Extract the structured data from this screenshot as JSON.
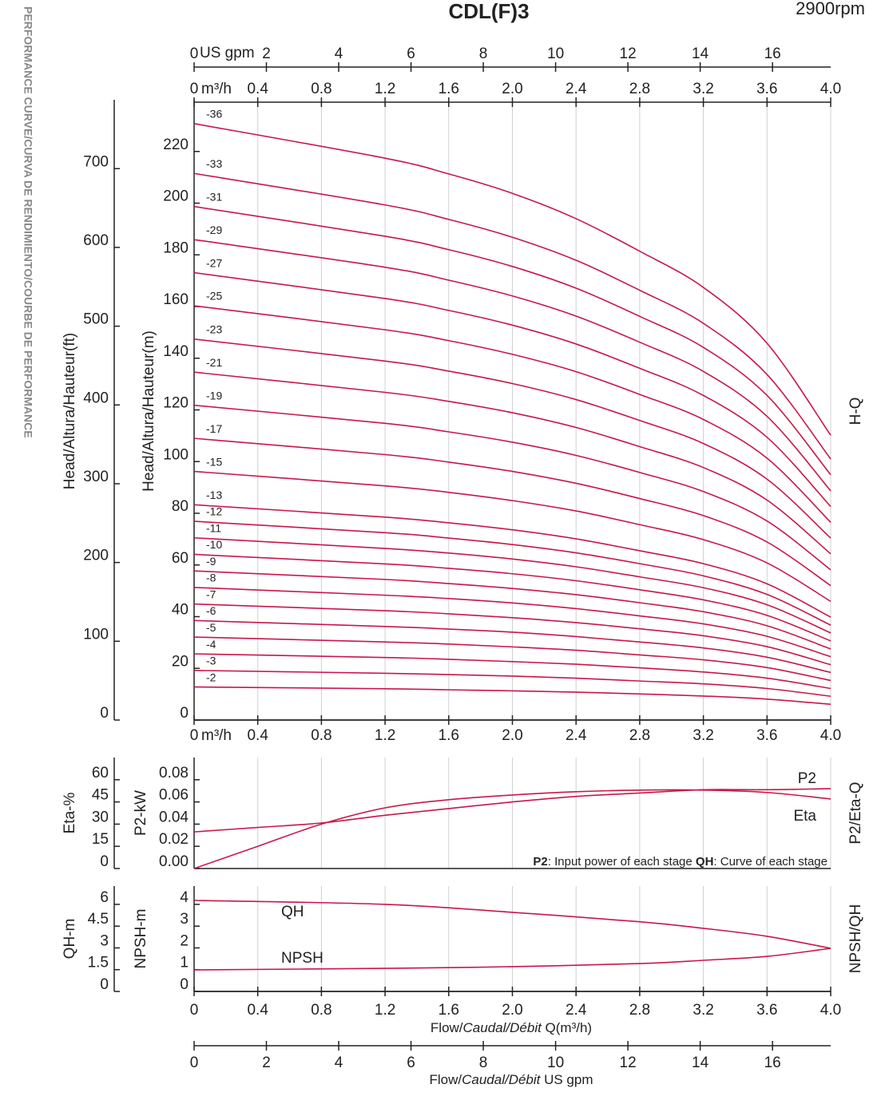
{
  "title": "CDL(F)3",
  "speed": "2900rpm",
  "side_title": "PERFORMANCE CURVE/CURVA DE RENDIMIENTO/COURBE DE PERFORMANCE",
  "chart_data": [
    {
      "type": "line",
      "side_label": "H-Q",
      "y_label": "Head/Altura/Hauteur(m)",
      "y2_label": "Head/Altura/Hauteur(ft)",
      "x_unit": "m³/h",
      "xlim": [
        0,
        4
      ],
      "xticks": [
        0,
        0.4,
        0.8,
        1.2,
        1.6,
        {
          "value": 2,
          "label": "2.0"
        },
        2.4,
        2.8,
        3.2,
        3.6,
        {
          "value": 4,
          "label": "4.0"
        }
      ],
      "x2_unit": "US gpm",
      "x2lim": [
        0,
        17.61
      ],
      "x2ticks": [
        0,
        2,
        4,
        6,
        8,
        10,
        12,
        14,
        16
      ],
      "ylim": [
        0,
        240
      ],
      "yticks": [
        0,
        20,
        40,
        60,
        80,
        100,
        120,
        140,
        160,
        180,
        200,
        220
      ],
      "y2lim": [
        0,
        787.4
      ],
      "y2ticks": [
        0,
        100,
        200,
        300,
        400,
        500,
        600,
        700
      ],
      "grid": true,
      "color": "#c8174a",
      "x": [
        0,
        1.2,
        1.6,
        2,
        2.4,
        2.8,
        3.2,
        3.6,
        4
      ],
      "series": [
        {
          "name": "-36",
          "values": [
            230.8,
            217.4,
            211.3,
            203.8,
            194.0,
            181.4,
            167.4,
            145.8,
            110.2
          ]
        },
        {
          "name": "-33",
          "values": [
            211.5,
            199.3,
            193.7,
            186.8,
            177.9,
            166.3,
            153.5,
            133.7,
            101.0
          ]
        },
        {
          "name": "-31",
          "values": [
            198.7,
            187.2,
            182.0,
            175.5,
            167.1,
            156.2,
            144.2,
            125.6,
            94.9
          ]
        },
        {
          "name": "-29",
          "values": [
            185.9,
            175.2,
            170.2,
            164.1,
            156.3,
            146.2,
            134.9,
            117.5,
            88.7
          ]
        },
        {
          "name": "-27",
          "values": [
            173.1,
            163.1,
            158.5,
            152.8,
            145.5,
            136.1,
            125.6,
            109.4,
            82.6
          ]
        },
        {
          "name": "-25",
          "values": [
            160.3,
            151.0,
            146.8,
            141.5,
            134.8,
            126.0,
            116.3,
            101.3,
            76.5
          ]
        },
        {
          "name": "-23",
          "values": [
            147.4,
            138.9,
            135.0,
            130.2,
            124.0,
            115.9,
            107.0,
            93.2,
            70.4
          ]
        },
        {
          "name": "-21",
          "values": [
            134.6,
            126.8,
            123.3,
            118.9,
            113.2,
            105.8,
            97.7,
            85.1,
            64.3
          ]
        },
        {
          "name": "-19",
          "values": [
            121.8,
            114.8,
            111.5,
            107.5,
            102.4,
            95.8,
            88.4,
            77.0,
            58.1
          ]
        },
        {
          "name": "-17",
          "values": [
            109.0,
            102.7,
            99.8,
            96.2,
            91.6,
            85.7,
            79.1,
            68.9,
            52.0
          ]
        },
        {
          "name": "-15",
          "values": [
            96.2,
            90.6,
            88.1,
            84.9,
            80.9,
            75.6,
            69.8,
            60.8,
            45.9
          ]
        },
        {
          "name": "-13",
          "values": [
            83.3,
            78.5,
            76.3,
            73.6,
            70.1,
            65.5,
            60.5,
            52.7,
            39.8
          ]
        },
        {
          "name": "-12",
          "values": [
            76.9,
            72.5,
            70.4,
            67.9,
            64.7,
            60.5,
            55.8,
            48.6,
            36.7
          ]
        },
        {
          "name": "-11",
          "values": [
            70.5,
            66.4,
            64.6,
            62.3,
            59.3,
            55.4,
            51.2,
            44.6,
            33.7
          ]
        },
        {
          "name": "-10",
          "values": [
            64.1,
            60.4,
            58.7,
            56.6,
            53.9,
            50.4,
            46.5,
            40.5,
            30.6
          ]
        },
        {
          "name": "-9",
          "values": [
            57.7,
            54.4,
            52.8,
            50.9,
            48.5,
            45.4,
            41.9,
            36.5,
            27.5
          ]
        },
        {
          "name": "-8",
          "values": [
            51.3,
            48.3,
            47.0,
            45.3,
            43.1,
            40.3,
            37.2,
            32.4,
            24.5
          ]
        },
        {
          "name": "-7",
          "values": [
            44.9,
            42.3,
            41.1,
            39.6,
            37.7,
            35.3,
            32.6,
            28.4,
            21.4
          ]
        },
        {
          "name": "-6",
          "values": [
            38.5,
            36.2,
            35.2,
            34.0,
            32.3,
            30.2,
            27.9,
            24.3,
            18.4
          ]
        },
        {
          "name": "-5",
          "values": [
            32.1,
            30.2,
            29.4,
            28.3,
            27.0,
            25.2,
            23.3,
            20.3,
            15.3
          ]
        },
        {
          "name": "-4",
          "values": [
            25.6,
            24.2,
            23.5,
            22.6,
            21.6,
            20.2,
            18.6,
            16.2,
            12.2
          ]
        },
        {
          "name": "-3",
          "values": [
            19.2,
            18.1,
            17.6,
            17.0,
            16.2,
            15.1,
            14.0,
            12.2,
            9.2
          ]
        },
        {
          "name": "-2",
          "values": [
            12.8,
            12.1,
            11.7,
            11.3,
            10.8,
            10.1,
            9.3,
            8.1,
            6.1
          ]
        }
      ]
    },
    {
      "type": "line",
      "side_label": "P2/Eta-Q",
      "y_label": "P2-kW",
      "y2_label": "Eta-%",
      "xlim": [
        0,
        4
      ],
      "xticks": [
        0,
        0.4,
        0.8,
        1.2,
        1.6,
        2,
        2.4,
        2.8,
        3.2,
        3.6,
        4
      ],
      "grid": true,
      "ylim": [
        0,
        0.1
      ],
      "yticks": [
        {
          "value": 0,
          "label": "0.00"
        },
        0.02,
        0.04,
        0.06,
        0.08
      ],
      "y2lim": [
        0,
        75
      ],
      "y2ticks": [
        0,
        15,
        30,
        45,
        60
      ],
      "note": [
        "P2",
        ": Input power of each stage ",
        "QH",
        ": Curve of each stage"
      ],
      "x": [
        0,
        0.4,
        0.8,
        1.2,
        1.6,
        2,
        2.4,
        2.8,
        3.2,
        3.6,
        4
      ],
      "series": [
        {
          "name": "P2",
          "color": "#c8174a",
          "values": [
            0.033,
            0.037,
            0.041,
            0.048,
            0.054,
            0.06,
            0.065,
            0.068,
            0.071,
            0.071,
            0.072
          ]
        },
        {
          "name": "Eta",
          "color": "#c8174a",
          "axis": "y2",
          "values": [
            0,
            15,
            30,
            41,
            46.5,
            49.7,
            51.9,
            53,
            53,
            51.4,
            47
          ]
        }
      ]
    },
    {
      "type": "line",
      "side_label": "NPSH/QH",
      "y_label": "NPSH-m",
      "y2_label": "QH-m",
      "xlim": [
        0,
        4
      ],
      "xticks": [
        0,
        0.4,
        0.8,
        1.2,
        1.6,
        {
          "value": 2,
          "label": "2.0"
        },
        2.4,
        2.8,
        3.2,
        3.6,
        {
          "value": 4,
          "label": "4.0"
        }
      ],
      "grid": true,
      "x_label": [
        "Flow/",
        "Caudal/Débit",
        " Q(m³/h)"
      ],
      "x2lim": [
        0,
        17.61
      ],
      "x2ticks": [
        0,
        2,
        4,
        6,
        8,
        10,
        12,
        14,
        16
      ],
      "x2_label": [
        "Flow/",
        "Caudal/Débit",
        "  US gpm"
      ],
      "ylim": [
        0,
        4.84
      ],
      "yticks": [
        0,
        1,
        2,
        3,
        4
      ],
      "y2lim": [
        0,
        7.26
      ],
      "y2ticks": [
        0,
        1.5,
        3,
        4.5,
        6
      ],
      "x": [
        0,
        1.2,
        2,
        2.8,
        3.2,
        3.6,
        4
      ],
      "series": [
        {
          "name": "NPSH",
          "color": "#c8174a",
          "values": [
            0.99,
            1.06,
            1.14,
            1.28,
            1.43,
            1.61,
            1.98
          ]
        },
        {
          "name": "QH",
          "color": "#c8174a",
          "axis": "y2",
          "values": [
            6.27,
            6.0,
            5.45,
            4.8,
            4.35,
            3.8,
            2.97
          ]
        }
      ]
    }
  ]
}
